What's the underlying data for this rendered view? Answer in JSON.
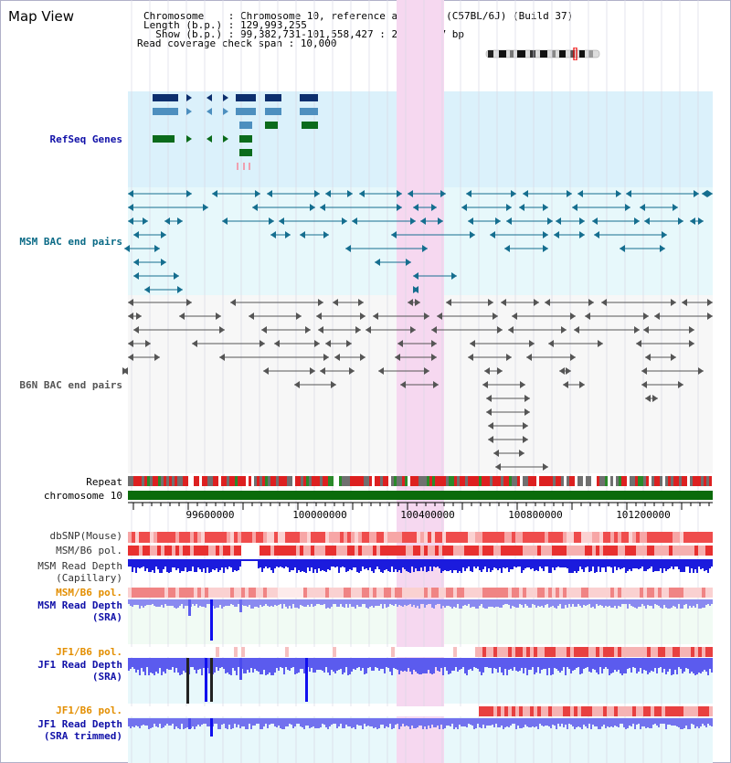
{
  "page": {
    "title": "Map View"
  },
  "info": {
    "chromosome_key": "Chromosome    : ",
    "chromosome_val": "Chromosome 10, reference assembly (C57BL/6J) (Build 37)",
    "length_key": "Length (b.p.) : ",
    "length_val": "129,993,255",
    "show_key": "  Show (b.p.) : ",
    "show_val": "99,382,731-101,558,427 : 2,175,697 bp",
    "span_key": "Read coverage check span : ",
    "span_val": "10,000"
  },
  "tracks": {
    "refseq": "RefSeq Genes",
    "msm_bac": "MSM BAC end pairs",
    "b6n_bac": "B6N BAC end pairs",
    "repeat": "Repeat",
    "chromosome": "chromosome 10",
    "dbsnp": "dbSNP(Mouse)",
    "msm_b6_pol": "MSM/B6 pol.",
    "msm_read_depth_cap_1": "MSM Read Depth",
    "msm_read_depth_cap_2": "(Capillary)",
    "msm_b6_pol_2": "MSM/B6 pol.",
    "msm_read_depth_sra_1": "MSM Read Depth",
    "msm_read_depth_sra_2": "(SRA)",
    "jf1_b6_pol": "JF1/B6 pol.",
    "jf1_read_depth_sra_1": "JF1 Read Depth",
    "jf1_read_depth_sra_2": "(SRA)",
    "jf1_b6_pol_2": "JF1/B6 pol.",
    "jf1_read_depth_trim_1": "JF1 Read Depth",
    "jf1_read_depth_trim_2": "(SRA trimmed)"
  },
  "axis": {
    "ticks": [
      "99600000",
      "100000000",
      "100400000",
      "100800000",
      "101200000"
    ]
  },
  "colors": {
    "highlight": "#f6d8f0",
    "refseq_bg": "#dbf1fb",
    "msm_bac_bg": "#e7f8fb",
    "b6n_bg": "#f1fbf4",
    "gene_dark": "#0d2f6e",
    "gene_mid": "#4d8fbf",
    "gene_green": "#0b6b1b",
    "msm_bac": "#156e8f",
    "b6n_bac": "#555555",
    "chrom": "#0b6b0b",
    "red": "#e41c1c",
    "blue": "#1010ee",
    "label_blue": "#1010a8",
    "label_teal": "#0a6a86",
    "label_gray": "#555555",
    "label_orange": "#e38e00"
  }
}
